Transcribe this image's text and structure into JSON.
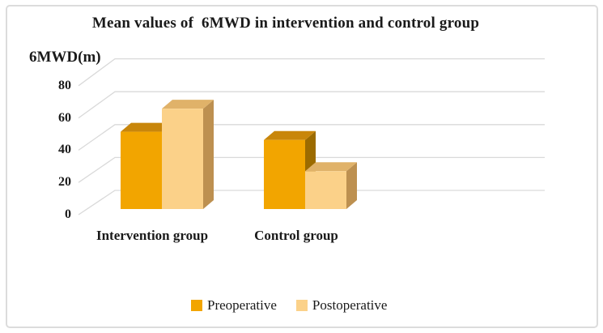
{
  "figure": {
    "title": "Mean values of  6MWD in intervention and control group",
    "y_axis_title": "6MWD(m)"
  },
  "chart_data": {
    "type": "bar",
    "style": "3d-clustered-column",
    "title": "Mean values of  6MWD in intervention and control group",
    "ylabel": "6MWD(m)",
    "xlabel": "",
    "categories": [
      "Intervention group",
      "Control group"
    ],
    "series": [
      {
        "name": "Preoperative",
        "values": [
          47,
          42
        ],
        "colors": {
          "front": "#F2A500",
          "top": "#C8860B",
          "side": "#9C6B00"
        }
      },
      {
        "name": "Postoperative",
        "values": [
          61,
          23
        ],
        "colors": {
          "front": "#FBD189",
          "top": "#E0B269",
          "side": "#BD9050"
        }
      }
    ],
    "yticks": [
      0,
      20,
      40,
      60,
      80
    ],
    "ylim": [
      0,
      80
    ],
    "grid": true,
    "gridline_color": "#D9D9D9",
    "legend_position": "bottom",
    "text_color": "#1A1A1A",
    "frame_border_color": "#DCDCDC",
    "background": "#FFFFFF"
  }
}
